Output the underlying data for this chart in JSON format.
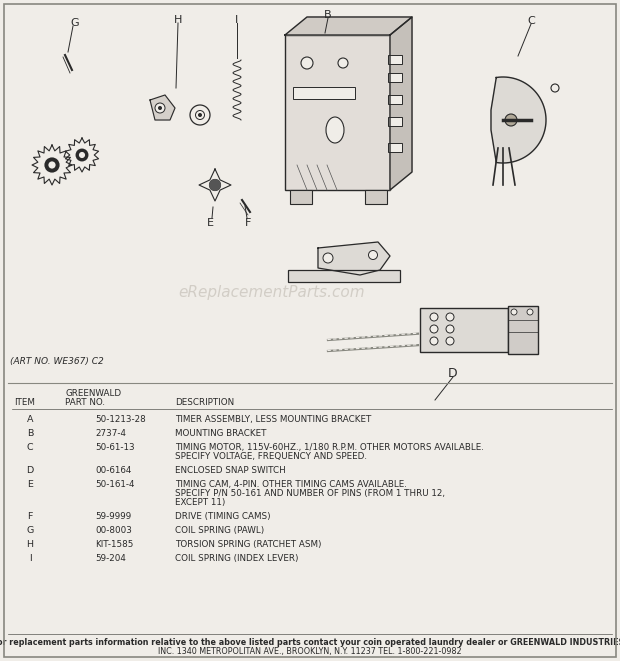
{
  "bg_color": "#f0ede8",
  "diagram_bg": "#f0ede8",
  "art_no": "(ART NO. WE367) C2",
  "watermark": "eReplacementParts.com",
  "items": [
    {
      "item": "A",
      "part": "50-1213-28",
      "desc1": "TIMER ASSEMBLY, LESS MOUNTING BRACKET",
      "desc2": "",
      "desc3": ""
    },
    {
      "item": "B",
      "part": "2737-4",
      "desc1": "MOUNTING BRACKET",
      "desc2": "",
      "desc3": ""
    },
    {
      "item": "C",
      "part": "50-61-13",
      "desc1": "TIMING MOTOR, 115V-60HZ., 1/180 R.P.M. OTHER MOTORS AVAILABLE.",
      "desc2": "   SPECIFY VOLTAGE, FREQUENCY AND SPEED.",
      "desc3": ""
    },
    {
      "item": "D",
      "part": "00-6164",
      "desc1": "ENCLOSED SNAP SWITCH",
      "desc2": "",
      "desc3": ""
    },
    {
      "item": "E",
      "part": "50-161-4",
      "desc1": "TIMING CAM, 4-PIN. OTHER TIMING CAMS AVAILABLE.",
      "desc2": "   SPECIFY P/N 50-161 AND NUMBER OF PINS (FROM 1 THRU 12,",
      "desc3": "   EXCEPT 11)"
    },
    {
      "item": "F",
      "part": "59-9999",
      "desc1": "DRIVE (TIMING CAMS)",
      "desc2": "",
      "desc3": ""
    },
    {
      "item": "G",
      "part": "00-8003",
      "desc1": "COIL SPRING (PAWL)",
      "desc2": "",
      "desc3": ""
    },
    {
      "item": "H",
      "part": "KIT-1585",
      "desc1": "TORSION SPRING (RATCHET ASM)",
      "desc2": "",
      "desc3": ""
    },
    {
      "item": "I",
      "part": "59-204",
      "desc1": "COIL SPRING (INDEX LEVER)",
      "desc2": "",
      "desc3": ""
    }
  ],
  "footer1": "For replacement parts information relative to the above listed parts contact your coin operated laundry dealer or GREENWALD INDUSTRIES,",
  "footer2": "INC. 1340 METROPOLITAN AVE., BROOKLYN, N.Y. 11237 TEL. 1-800-221-0982",
  "ink": "#2a2a2a",
  "ink_light": "#555555"
}
